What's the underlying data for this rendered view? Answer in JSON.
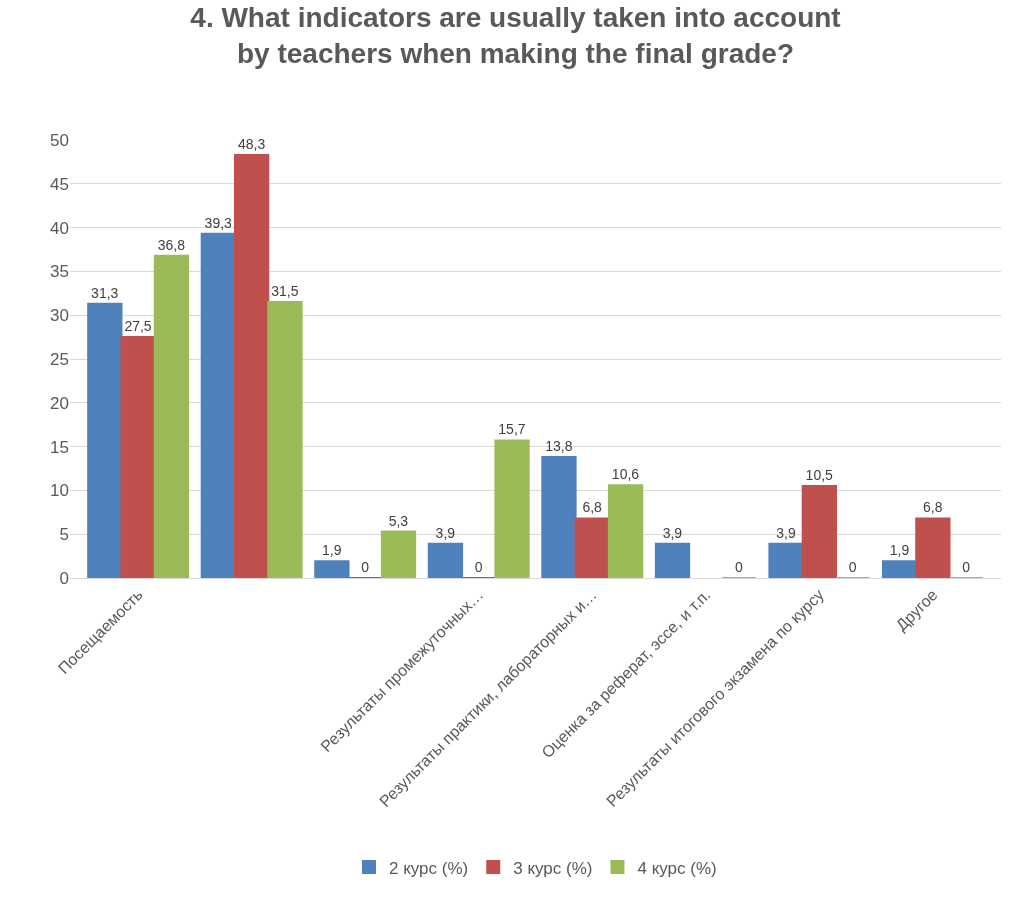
{
  "chart_data": {
    "type": "bar",
    "title": "4. What indicators are usually taken into account by teachers when making the final grade?",
    "categories": [
      "Посещаемость",
      null,
      null,
      "Результаты промежуточных…",
      "Результаты практики, лабораторных и…",
      "Оценка за реферат, эссе, и т.п.",
      "Результаты итогового экзамена по курсу",
      "Другое"
    ],
    "series": [
      {
        "name": "2 курс (%)",
        "color": "#4f81bd",
        "values": [
          31.3,
          39.3,
          1.9,
          3.9,
          13.8,
          3.9,
          3.9,
          1.9
        ],
        "value_labels": [
          "31,3",
          "39,3",
          "1,9",
          "3,9",
          "13,8",
          "3,9",
          "3,9",
          "1,9"
        ]
      },
      {
        "name": "3 курс (%)",
        "color": "#c0504d",
        "values": [
          27.5,
          48.3,
          0,
          0,
          6.8,
          null,
          10.5,
          6.8
        ],
        "value_labels": [
          "27,5",
          "48,3",
          "0",
          "0",
          "6,8",
          null,
          "10,5",
          "6,8"
        ]
      },
      {
        "name": "4 курс (%)",
        "color": "#9bbb59",
        "values": [
          36.8,
          31.5,
          5.3,
          15.7,
          10.6,
          0,
          0,
          0
        ],
        "value_labels": [
          "36,8",
          "31,5",
          "5,3",
          "15,7",
          "10,6",
          "0",
          "0",
          "0"
        ]
      }
    ],
    "ylim": [
      0,
      50
    ],
    "yticks": [
      0,
      5,
      10,
      15,
      20,
      25,
      30,
      35,
      40,
      45,
      50
    ],
    "grid": "y",
    "legend": "bottom"
  }
}
